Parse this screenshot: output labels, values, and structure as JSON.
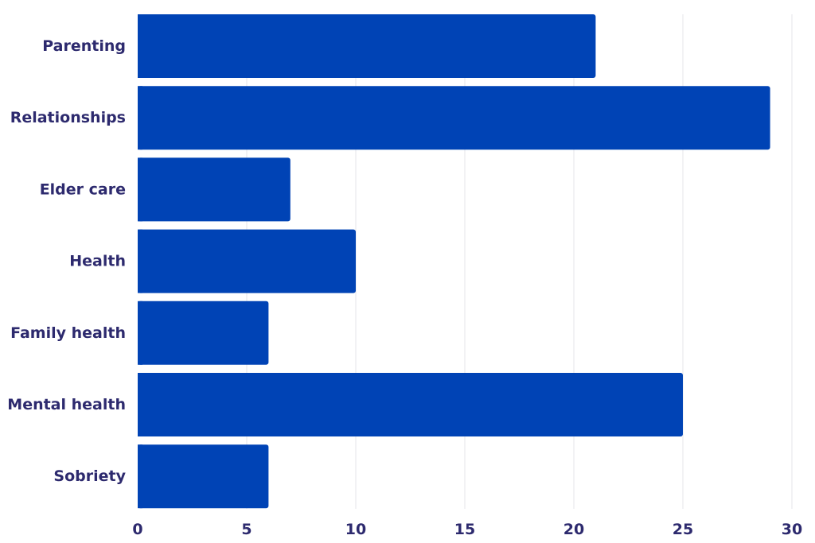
{
  "chart_data": {
    "type": "bar",
    "orientation": "horizontal",
    "title": "",
    "xlabel": "",
    "ylabel": "",
    "categories": [
      "Parenting",
      "Relationships",
      "Elder care",
      "Health",
      "Family health",
      "Mental health",
      "Sobriety"
    ],
    "values": [
      21,
      29,
      7,
      10,
      6,
      25,
      6
    ],
    "xlim": [
      0,
      30
    ],
    "xticks": [
      0,
      5,
      10,
      15,
      20,
      25,
      30
    ],
    "grid": "vertical",
    "legend": "none",
    "colors": {
      "bar": "#0043b5",
      "label_text": "#2d2a6e",
      "grid": "#e6e6ea"
    }
  }
}
